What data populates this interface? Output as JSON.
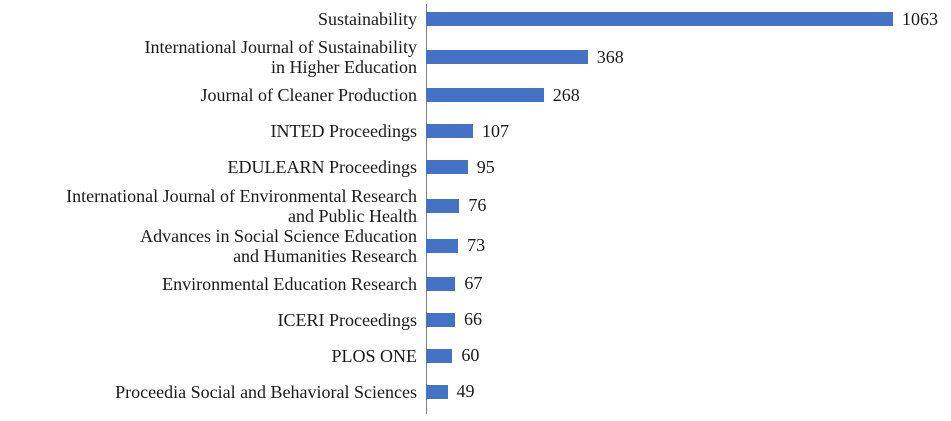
{
  "chart_data": {
    "type": "bar",
    "orientation": "horizontal",
    "title": "",
    "xlabel": "",
    "ylabel": "",
    "grid": false,
    "legend_position": "none",
    "value_axis_range": [
      0,
      1100
    ],
    "bar_color": "#4472C4",
    "axis_line_color": "#7F7F7F",
    "text_color": "#1A1A1A",
    "categories": [
      "Sustainability",
      "International Journal of Sustainability\nin Higher Education",
      "Journal of Cleaner Production",
      "INTED Proceedings",
      "EDULEARN Proceedings",
      "International Journal of Environmental Research\nand Public Health",
      "Advances in Social Science Education\nand Humanities Research",
      "Environmental Education Research",
      "ICERI Proceedings",
      "PLOS ONE",
      "Proceedia Social and Behavioral Sciences"
    ],
    "values": [
      1063,
      368,
      268,
      107,
      95,
      76,
      73,
      67,
      66,
      60,
      49
    ],
    "data_labels": [
      "1063",
      "368",
      "268",
      "107",
      "95",
      "76",
      "73",
      "67",
      "66",
      "60",
      "49"
    ]
  }
}
